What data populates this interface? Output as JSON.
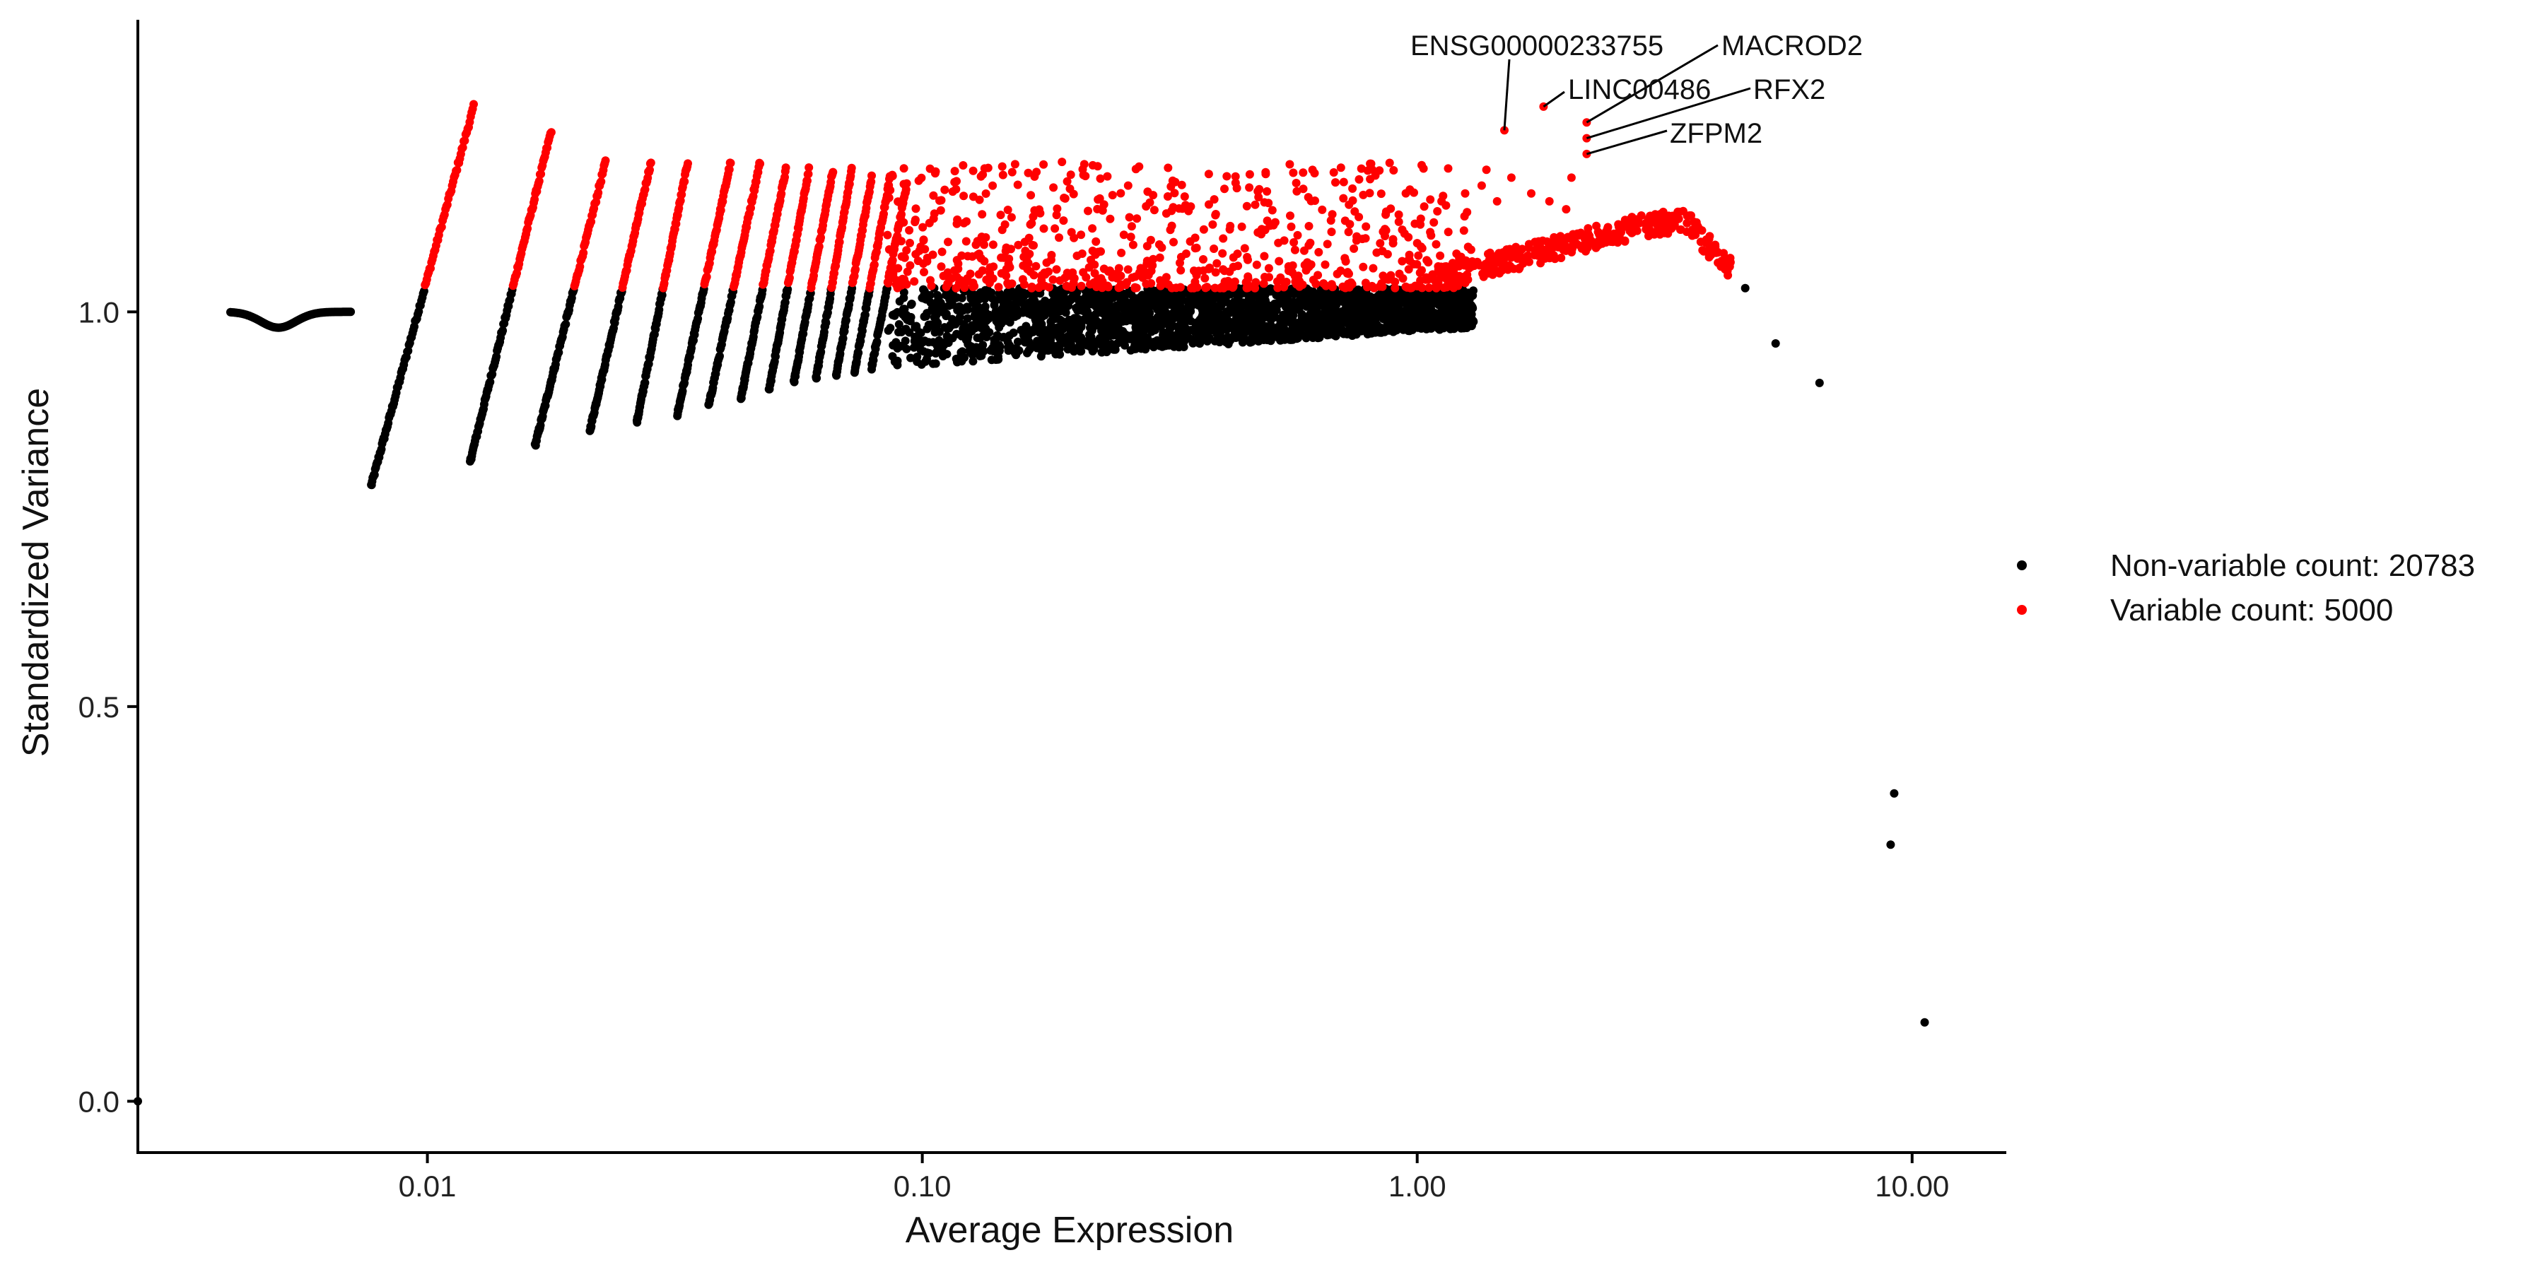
{
  "chart_data": {
    "type": "scatter",
    "title": "",
    "xlabel": "Average Expression",
    "ylabel": "Standardized Variance",
    "x_scale": "log10",
    "xlim": [
      0.0026,
      15.5
    ],
    "ylim": [
      -0.065,
      1.37
    ],
    "x_ticks": [
      {
        "value": 0.01,
        "label": "0.01"
      },
      {
        "value": 0.1,
        "label": "0.10"
      },
      {
        "value": 1,
        "label": "1.00"
      },
      {
        "value": 10,
        "label": "10.00"
      }
    ],
    "y_ticks": [
      {
        "value": 0,
        "label": "0.0"
      },
      {
        "value": 0.5,
        "label": "0.5"
      },
      {
        "value": 1,
        "label": "1.0"
      }
    ],
    "grid": false,
    "legend_position": "right",
    "series": [
      {
        "name": "Non-variable count: 20783",
        "color": "#000000",
        "count": 20783
      },
      {
        "name": "Variable count: 5000",
        "color": "#ff0000",
        "count": 5000
      }
    ],
    "variable_threshold_y": 1.03,
    "stripes": [
      {
        "x_start": 0.0077,
        "x_end": 0.0124,
        "y_start": 0.78,
        "y_end": 1.26
      },
      {
        "x_start": 0.0122,
        "x_end": 0.0178,
        "y_start": 0.81,
        "y_end": 1.23
      },
      {
        "x_start": 0.0165,
        "x_end": 0.0229,
        "y_start": 0.83,
        "y_end": 1.19
      },
      {
        "x_start": 0.0213,
        "x_end": 0.0283,
        "y_start": 0.85,
        "y_end": 1.19
      },
      {
        "x_start": 0.0265,
        "x_end": 0.0336,
        "y_start": 0.86,
        "y_end": 1.19
      },
      {
        "x_start": 0.032,
        "x_end": 0.041,
        "y_start": 0.87,
        "y_end": 1.19
      },
      {
        "x_start": 0.037,
        "x_end": 0.047,
        "y_start": 0.88,
        "y_end": 1.19
      },
      {
        "x_start": 0.043,
        "x_end": 0.053,
        "y_start": 0.89,
        "y_end": 1.18
      },
      {
        "x_start": 0.049,
        "x_end": 0.059,
        "y_start": 0.9,
        "y_end": 1.18
      },
      {
        "x_start": 0.055,
        "x_end": 0.066,
        "y_start": 0.91,
        "y_end": 1.18
      },
      {
        "x_start": 0.061,
        "x_end": 0.072,
        "y_start": 0.915,
        "y_end": 1.18
      },
      {
        "x_start": 0.067,
        "x_end": 0.079,
        "y_start": 0.92,
        "y_end": 1.17
      },
      {
        "x_start": 0.073,
        "x_end": 0.086,
        "y_start": 0.925,
        "y_end": 1.17
      },
      {
        "x_start": 0.079,
        "x_end": 0.093,
        "y_start": 0.93,
        "y_end": 1.16
      }
    ],
    "flat_cluster": {
      "x_start": 0.004,
      "x_end": 0.007,
      "y": 1.0,
      "dip_center_x": 0.005,
      "dip_depth": 0.02
    },
    "dense_cloud": {
      "x_start": 0.085,
      "x_end": 1.3,
      "y_low_start": 0.93,
      "y_low_end": 0.98,
      "red_y_max": 1.19
    },
    "upper_tail_points": [
      {
        "x": 1.35,
        "y": 1.16
      },
      {
        "x": 1.38,
        "y": 1.18
      },
      {
        "x": 1.55,
        "y": 1.17
      },
      {
        "x": 1.7,
        "y": 1.15
      },
      {
        "x": 2.0,
        "y": 1.13
      },
      {
        "x": 2.05,
        "y": 1.17
      },
      {
        "x": 1.25,
        "y": 1.15
      },
      {
        "x": 1.45,
        "y": 1.14
      },
      {
        "x": 1.12,
        "y": 1.14
      },
      {
        "x": 1.85,
        "y": 1.14
      }
    ],
    "high_end_points": [
      {
        "x": 4.6,
        "y": 1.03,
        "group": "non-variable"
      },
      {
        "x": 5.3,
        "y": 0.96,
        "group": "non-variable"
      },
      {
        "x": 6.5,
        "y": 0.91,
        "group": "non-variable"
      },
      {
        "x": 9.2,
        "y": 0.39,
        "group": "non-variable"
      },
      {
        "x": 9.05,
        "y": 0.325,
        "group": "non-variable"
      },
      {
        "x": 10.6,
        "y": 0.1,
        "group": "non-variable"
      },
      {
        "x": 0.0026,
        "y": 0.0,
        "group": "non-variable"
      }
    ],
    "labeled_genes": [
      {
        "name": "ENSG00000233755",
        "x": 1.5,
        "y": 1.23
      },
      {
        "name": "MACROD2",
        "x": 2.2,
        "y": 1.24
      },
      {
        "name": "LINC00486",
        "x": 1.8,
        "y": 1.26
      },
      {
        "name": "RFX2",
        "x": 2.2,
        "y": 1.22
      },
      {
        "name": "ZFPM2",
        "x": 2.2,
        "y": 1.2
      }
    ]
  }
}
